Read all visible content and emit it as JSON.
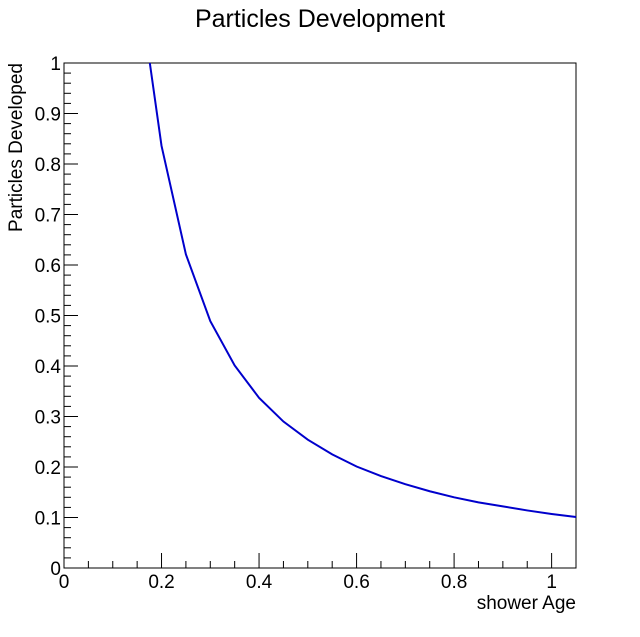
{
  "colors": {
    "background": "#ffffff",
    "frame": "#000000",
    "series": "#0000cc"
  },
  "chart_data": {
    "type": "line",
    "title": "Particles Development",
    "xlabel": "shower Age",
    "ylabel": "Particles Developed",
    "xlim": [
      0,
      1.05
    ],
    "ylim": [
      0,
      1
    ],
    "grid": false,
    "x_ticks": [
      0,
      0.2,
      0.4,
      0.6,
      0.8,
      1
    ],
    "x_tick_labels": [
      "0",
      "0.2",
      "0.4",
      "0.6",
      "0.8",
      "1"
    ],
    "y_ticks": [
      0,
      0.1,
      0.2,
      0.3,
      0.4,
      0.5,
      0.6,
      0.7,
      0.8,
      0.9,
      1
    ],
    "y_tick_labels": [
      "0",
      "0.1",
      "0.2",
      "0.3",
      "0.4",
      "0.5",
      "0.6",
      "0.7",
      "0.8",
      "0.9",
      "1"
    ],
    "series": [
      {
        "x": [
          0.176,
          0.2,
          0.25,
          0.3,
          0.35,
          0.4,
          0.45,
          0.5,
          0.55,
          0.6,
          0.65,
          0.7,
          0.75,
          0.8,
          0.85,
          0.9,
          0.95,
          1.0,
          1.05
        ],
        "y": [
          1.0,
          0.836,
          0.621,
          0.489,
          0.401,
          0.337,
          0.29,
          0.254,
          0.225,
          0.201,
          0.182,
          0.166,
          0.152,
          0.14,
          0.13,
          0.122,
          0.114,
          0.107,
          0.101
        ]
      }
    ]
  }
}
